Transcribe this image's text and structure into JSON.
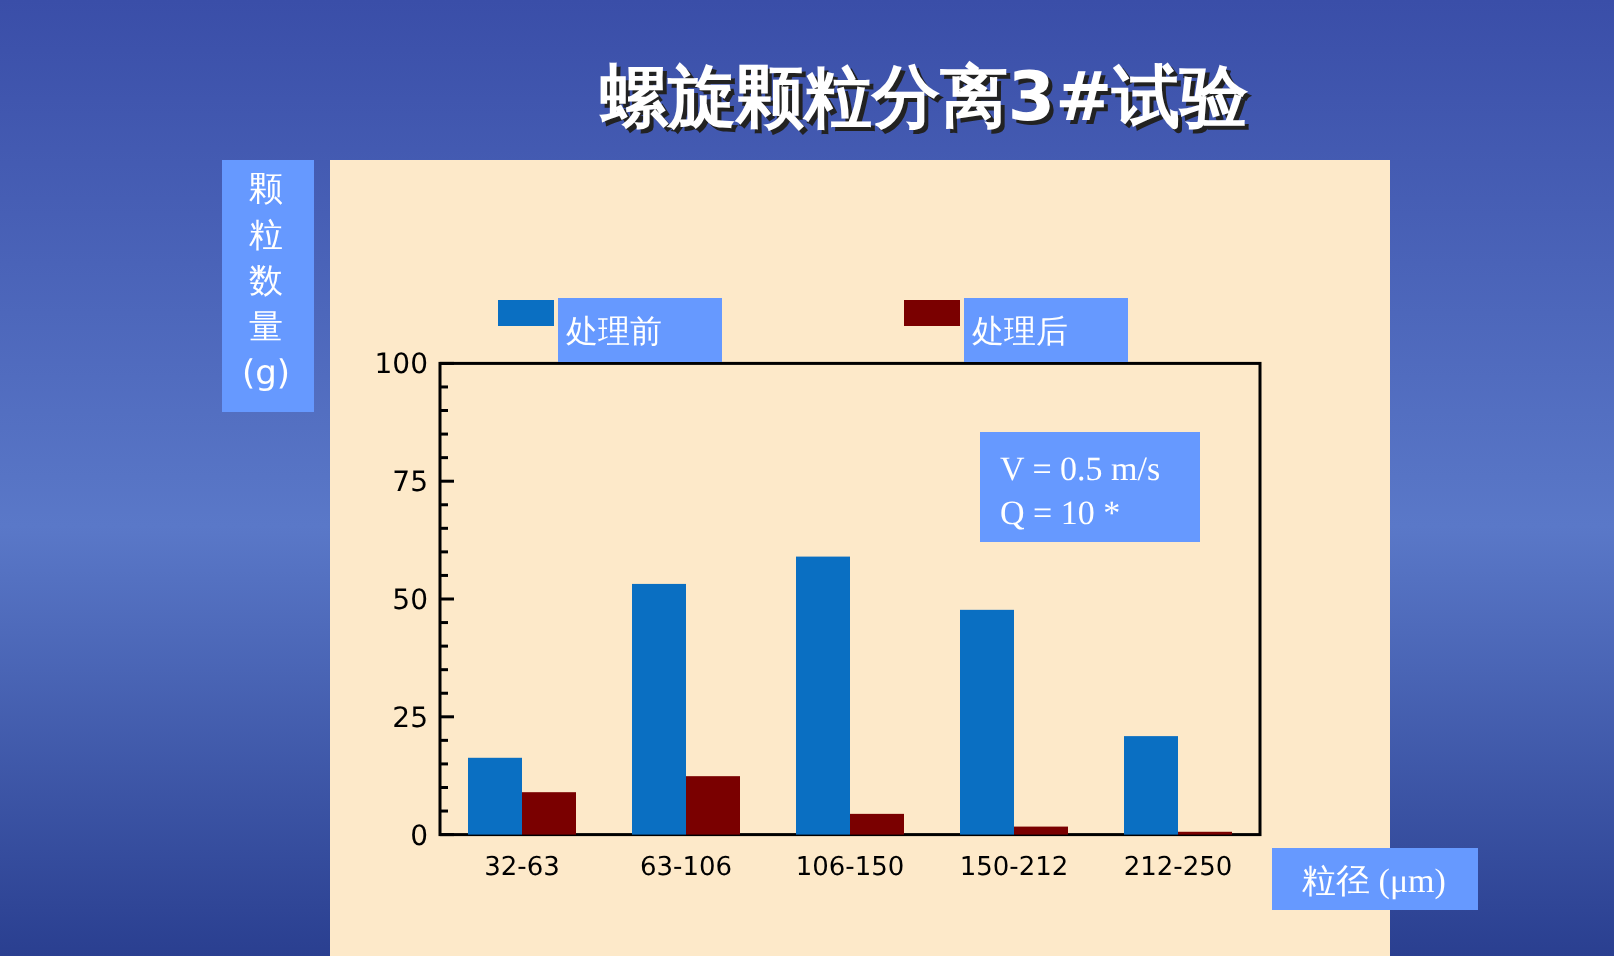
{
  "chart_data": {
    "type": "bar",
    "title": "螺旋颗粒分离3#试验",
    "xlabel": "粒径 (μm)",
    "ylabel": "颗粒数量(g)",
    "categories": [
      "32-63",
      "63-106",
      "106-150",
      "150-212",
      "212-250"
    ],
    "series": [
      {
        "name": "处理前",
        "color": "#0a6fc2",
        "values": [
          16.3,
          53.2,
          59,
          47.7,
          20.9
        ]
      },
      {
        "name": "处理后",
        "color": "#7a0000",
        "values": [
          9,
          12.4,
          4.4,
          1.7,
          0.6
        ]
      }
    ],
    "ylim": [
      0,
      100
    ],
    "yticks": [
      0,
      {
        "value": 5,
        "label": null
      },
      {
        "value": 10,
        "label": null
      },
      {
        "value": 15,
        "label": null
      },
      {
        "value": 20,
        "label": null
      },
      25,
      {
        "value": 30,
        "label": null
      },
      {
        "value": 35,
        "label": null
      },
      {
        "value": 40,
        "label": null
      },
      {
        "value": 45,
        "label": null
      },
      50,
      {
        "value": 55,
        "label": null
      },
      {
        "value": 60,
        "label": null
      },
      {
        "value": 65,
        "label": null
      },
      {
        "value": 70,
        "label": null
      },
      75,
      {
        "value": 80,
        "label": null
      },
      {
        "value": 85,
        "label": null
      },
      {
        "value": 90,
        "label": null
      },
      {
        "value": 95,
        "label": null
      },
      100
    ],
    "annotations": [
      "V = 0.5 m/s\nQ = 10 *"
    ],
    "legend": "top",
    "grid": false
  }
}
